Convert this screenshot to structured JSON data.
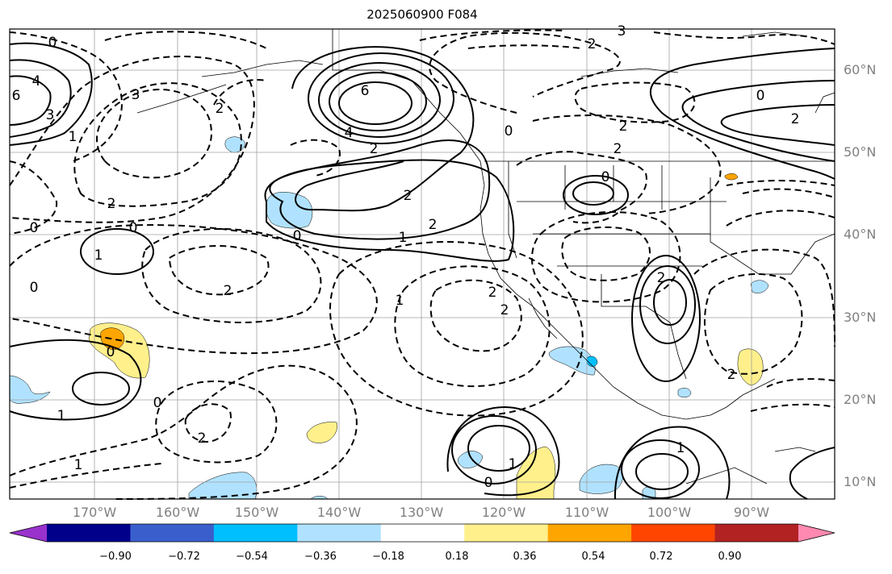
{
  "title": "2025060900 F084",
  "lat_labels": [
    "60°N",
    "50°N",
    "40°N",
    "30°N",
    "20°N",
    "10°N"
  ],
  "lon_labels": [
    "170°W",
    "160°W",
    "150°W",
    "140°W",
    "130°W",
    "120°W",
    "110°W",
    "100°W",
    "90°W"
  ],
  "colorbar": {
    "colors": [
      "#9932cc",
      "#00008b",
      "#3a5fcd",
      "#00bfff",
      "#b0e2ff",
      "#ffffff",
      "#fff08c",
      "#ffa500",
      "#ff4500",
      "#b22222",
      "#ff89b0"
    ],
    "tick_labels": [
      "−0.90",
      "−0.72",
      "−0.54",
      "−0.36",
      "−0.18",
      "0.18",
      "0.36",
      "0.54",
      "0.72",
      "0.90"
    ]
  },
  "contour_labels": [
    "0",
    "0",
    "0",
    "0",
    "0",
    "0",
    "0",
    "0",
    "0",
    "0",
    "0",
    "1",
    "1",
    "1",
    "1",
    "1",
    "1",
    "1",
    "1",
    "2",
    "2",
    "2",
    "2",
    "2",
    "2",
    "2",
    "2",
    "2",
    "2",
    "2",
    "2",
    "2",
    "2",
    "2",
    "3",
    "3",
    "3",
    "4",
    "4",
    "6",
    "6"
  ]
}
